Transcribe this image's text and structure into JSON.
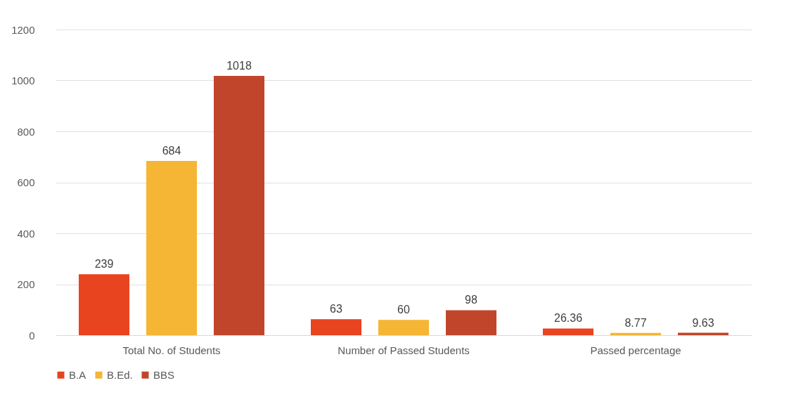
{
  "chart_data": {
    "type": "bar",
    "categories": [
      "Total No. of Students",
      "Number of Passed Students",
      "Passed percentage"
    ],
    "series": [
      {
        "name": "B.A",
        "color": "#e8441f",
        "values": [
          239,
          63,
          26.36
        ]
      },
      {
        "name": "B.Ed.",
        "color": "#f5b535",
        "values": [
          684,
          60,
          8.77
        ]
      },
      {
        "name": "BBS",
        "color": "#c0452b",
        "values": [
          1018,
          98,
          9.63
        ]
      }
    ],
    "ylim": [
      0,
      1200
    ],
    "yticks": [
      0,
      200,
      400,
      600,
      800,
      1000,
      1200
    ],
    "grid": "y",
    "legend": "bottom",
    "data_labels": true
  }
}
